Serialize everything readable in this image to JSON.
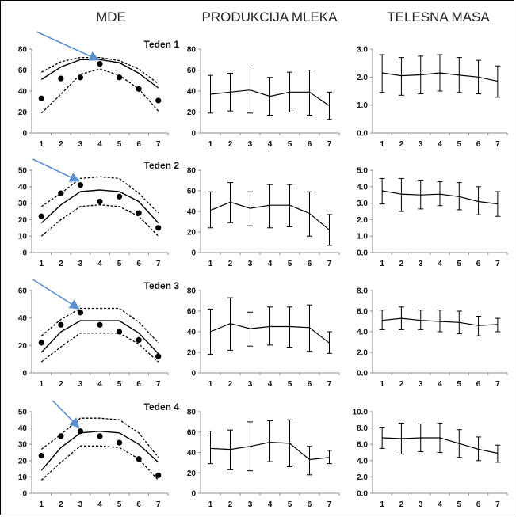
{
  "column_titles": [
    "MDE",
    "PRODUKCIJA MLEKA",
    "TELESNA MASA"
  ],
  "colors": {
    "line": "#000000",
    "arrow": "#5b8fd0",
    "axis": "#8c8c8c"
  },
  "chart_data": [
    {
      "type": "line",
      "column": "MDE",
      "title": "Teden 1",
      "x": [
        1,
        2,
        3,
        4,
        5,
        6,
        7
      ],
      "ylim": [
        0,
        80
      ],
      "yticks": [
        "0",
        "20",
        "40",
        "60",
        "80"
      ],
      "mean": [
        51,
        63,
        70,
        70,
        67,
        57,
        43
      ],
      "upper": [
        58,
        68,
        72,
        72,
        69,
        61,
        47
      ],
      "lower": [
        19,
        37,
        56,
        61,
        55,
        42,
        21
      ],
      "points": [
        33,
        52,
        53,
        66,
        53,
        42,
        31
      ],
      "arrow_x": 4
    },
    {
      "type": "line",
      "column": "PRODUKCIJA MLEKA",
      "title": "",
      "x": [
        1,
        2,
        3,
        4,
        5,
        6,
        7
      ],
      "ylim": [
        0,
        80
      ],
      "yticks": [
        "0",
        "20",
        "40",
        "60",
        "80"
      ],
      "values": [
        37,
        39,
        41,
        35,
        39,
        39,
        26
      ],
      "error_low": [
        19,
        21,
        19,
        17,
        20,
        17,
        13
      ],
      "error_high": [
        55,
        57,
        63,
        53,
        58,
        60,
        39
      ]
    },
    {
      "type": "line",
      "column": "TELESNA MASA",
      "title": "",
      "x": [
        1,
        2,
        3,
        4,
        5,
        6,
        7
      ],
      "ylim": [
        0,
        3
      ],
      "yticks": [
        "0.0",
        "1.0",
        "2.0",
        "3.0"
      ],
      "values": [
        2.15,
        2.05,
        2.08,
        2.15,
        2.07,
        2.0,
        1.85
      ],
      "error_low": [
        1.45,
        1.35,
        1.4,
        1.5,
        1.45,
        1.4,
        1.28
      ],
      "error_high": [
        2.8,
        2.7,
        2.75,
        2.8,
        2.7,
        2.6,
        2.4
      ]
    },
    {
      "type": "line",
      "column": "MDE",
      "title": "Teden 2",
      "x": [
        1,
        2,
        3,
        4,
        5,
        6,
        7
      ],
      "ylim": [
        0,
        50
      ],
      "yticks": [
        "0",
        "10",
        "20",
        "30",
        "40",
        "50"
      ],
      "mean": [
        18,
        29,
        37,
        38,
        37,
        31,
        18
      ],
      "upper": [
        28,
        36,
        45,
        46,
        45,
        36,
        24
      ],
      "lower": [
        10,
        20,
        28,
        29,
        28,
        22,
        10
      ],
      "points": [
        22,
        36,
        41,
        31,
        34,
        24,
        15
      ],
      "arrow_x": 3
    },
    {
      "type": "line",
      "column": "PRODUKCIJA MLEKA",
      "title": "",
      "x": [
        1,
        2,
        3,
        4,
        5,
        6,
        7
      ],
      "ylim": [
        0,
        80
      ],
      "yticks": [
        "0",
        "20",
        "40",
        "60",
        "80"
      ],
      "values": [
        41,
        49,
        43,
        46,
        46,
        38,
        22
      ],
      "error_low": [
        24,
        29,
        26,
        24,
        25,
        16,
        7
      ],
      "error_high": [
        59,
        68,
        59,
        66,
        66,
        59,
        37
      ]
    },
    {
      "type": "line",
      "column": "TELESNA MASA",
      "title": "",
      "x": [
        1,
        2,
        3,
        4,
        5,
        6,
        7
      ],
      "ylim": [
        0,
        5
      ],
      "yticks": [
        "0.0",
        "1.0",
        "2.0",
        "3.0",
        "4.0",
        "5.0"
      ],
      "values": [
        3.75,
        3.55,
        3.5,
        3.55,
        3.4,
        3.1,
        2.95
      ],
      "error_low": [
        2.95,
        2.5,
        2.65,
        2.85,
        2.6,
        2.3,
        2.2
      ],
      "error_high": [
        4.5,
        4.5,
        4.4,
        4.3,
        4.25,
        4.0,
        3.7
      ]
    },
    {
      "type": "line",
      "column": "MDE",
      "title": "Teden 3",
      "x": [
        1,
        2,
        3,
        4,
        5,
        6,
        7
      ],
      "ylim": [
        0,
        60
      ],
      "yticks": [
        "0",
        "20",
        "40",
        "60"
      ],
      "mean": [
        15,
        30,
        38,
        38,
        38,
        29,
        14
      ],
      "upper": [
        27,
        39,
        47,
        47,
        47,
        37,
        22
      ],
      "lower": [
        8,
        19,
        29,
        29,
        29,
        21,
        8
      ],
      "points": [
        22,
        35,
        44,
        35,
        30,
        24,
        12
      ],
      "arrow_x": 3
    },
    {
      "type": "line",
      "column": "PRODUKCIJA MLEKA",
      "title": "",
      "x": [
        1,
        2,
        3,
        4,
        5,
        6,
        7
      ],
      "ylim": [
        0,
        80
      ],
      "yticks": [
        "0",
        "20",
        "40",
        "60",
        "80"
      ],
      "values": [
        40,
        48,
        43,
        45,
        45,
        44,
        29
      ],
      "error_low": [
        18,
        22,
        26,
        27,
        25,
        21,
        19
      ],
      "error_high": [
        62,
        73,
        59,
        64,
        64,
        66,
        40
      ]
    },
    {
      "type": "line",
      "column": "TELESNA MASA",
      "title": "",
      "x": [
        1,
        2,
        3,
        4,
        5,
        6,
        7
      ],
      "ylim": [
        0,
        8
      ],
      "yticks": [
        "0.0",
        "2.0",
        "4.0",
        "6.0",
        "8.0"
      ],
      "values": [
        5.1,
        5.3,
        5.1,
        5.0,
        4.9,
        4.6,
        4.7
      ],
      "error_low": [
        4.2,
        4.2,
        4.2,
        4.0,
        3.8,
        3.6,
        4.0
      ],
      "error_high": [
        6.1,
        6.4,
        6.1,
        6.1,
        6.0,
        5.5,
        5.3
      ]
    },
    {
      "type": "line",
      "column": "MDE",
      "title": "Teden 4",
      "x": [
        1,
        2,
        3,
        4,
        5,
        6,
        7
      ],
      "ylim": [
        0,
        50
      ],
      "yticks": [
        "0",
        "10",
        "20",
        "30",
        "40",
        "50"
      ],
      "mean": [
        14,
        28,
        37,
        38,
        37,
        30,
        19
      ],
      "upper": [
        27,
        36,
        46,
        46,
        45,
        37,
        22
      ],
      "lower": [
        8,
        19,
        29,
        29,
        28,
        21,
        8
      ],
      "points": [
        23,
        35,
        38,
        35,
        31,
        21,
        11
      ],
      "arrow_x": 3
    },
    {
      "type": "line",
      "column": "PRODUKCIJA MLEKA",
      "title": "",
      "x": [
        1,
        2,
        3,
        4,
        5,
        6,
        7
      ],
      "ylim": [
        0,
        80
      ],
      "yticks": [
        "0",
        "20",
        "40",
        "60",
        "80"
      ],
      "values": [
        44,
        43,
        46,
        50,
        49,
        33,
        35
      ],
      "error_low": [
        29,
        23,
        22,
        31,
        26,
        18,
        29
      ],
      "error_high": [
        61,
        62,
        70,
        71,
        72,
        46,
        42
      ]
    },
    {
      "type": "line",
      "column": "TELESNA MASA",
      "title": "",
      "x": [
        1,
        2,
        3,
        4,
        5,
        6,
        7
      ],
      "ylim": [
        0,
        10
      ],
      "yticks": [
        "0.0",
        "2.0",
        "4.0",
        "6.0",
        "8.0",
        "10.0"
      ],
      "values": [
        6.8,
        6.7,
        6.8,
        6.8,
        6.1,
        5.4,
        4.9
      ],
      "error_low": [
        5.5,
        4.8,
        5.1,
        5.0,
        4.4,
        4.0,
        3.8
      ],
      "error_high": [
        8.1,
        8.6,
        8.5,
        8.6,
        7.8,
        6.9,
        5.9
      ]
    }
  ]
}
